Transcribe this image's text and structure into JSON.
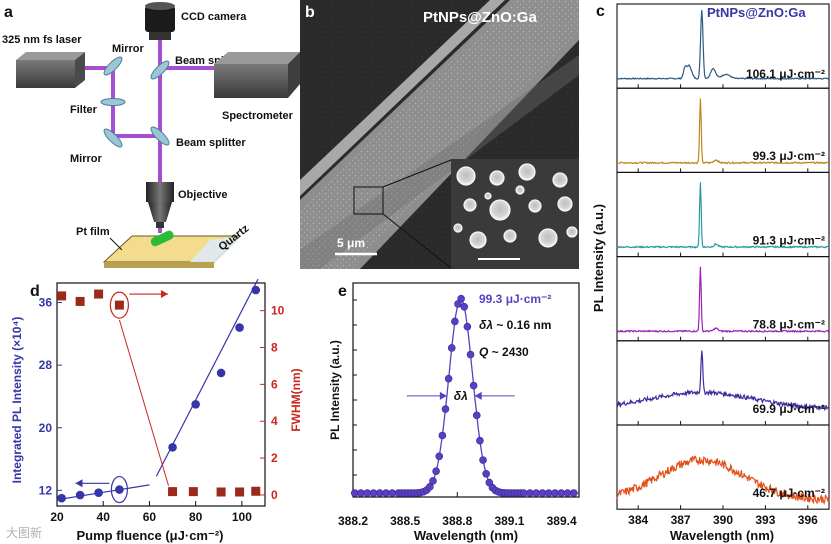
{
  "panels": {
    "a": {
      "letter": "a",
      "labels": {
        "laser": "325 nm fs laser",
        "camera": "CCD camera",
        "mirror_top": "Mirror",
        "bs_top": "Beam splitter",
        "spectrometer": "Spectrometer",
        "filter": "Filter",
        "bs_bottom": "Beam splitter",
        "mirror_bottom": "Mirror",
        "objective": "Objective",
        "pt_film": "Pt film",
        "quartz": "Quartz"
      },
      "colors": {
        "beam": "#a64fd0",
        "sample": "#f3dc8b",
        "rod": "#2bbb34"
      }
    },
    "b": {
      "letter": "b",
      "title": "PtNPs@ZnO:Ga",
      "scalebar": "5 μm"
    },
    "c": {
      "letter": "c",
      "title": "PtNPs@ZnO:Ga",
      "ylabel": "PL Intensity (a.u.)",
      "xlabel": "Wavelength (nm)",
      "xticks": [
        "384",
        "387",
        "390",
        "393",
        "396"
      ],
      "spectra": [
        {
          "label": "106.1 μJ·cm⁻²",
          "color": "#2d5a80",
          "type": "multi"
        },
        {
          "label": "99.3 μJ·cm⁻²",
          "color": "#b98a1b",
          "type": "single"
        },
        {
          "label": "91.3 μJ·cm⁻²",
          "color": "#2a9a9e",
          "type": "single"
        },
        {
          "label": "78.8 μJ·cm⁻²",
          "color": "#9a22b5",
          "type": "single"
        },
        {
          "label": "69.9 μJ·cm⁻²",
          "color": "#3b2fa0",
          "type": "broadpeak"
        },
        {
          "label": "46.7 μJ·cm⁻²",
          "color": "#e2501a",
          "type": "broad"
        }
      ]
    },
    "d": {
      "letter": "d",
      "xlabel": "Pump fluence (μJ·cm⁻²)",
      "ylabel_left": "Integrated PL Intensity (×10⁴)",
      "ylabel_right": "FWHM(nm)",
      "colors": {
        "left": "#3636a8",
        "right": "#c8281e",
        "fwhm_marker": "#9b2a1a"
      }
    },
    "e": {
      "letter": "e",
      "ylabel": "PL Intensity (a.u.)",
      "xlabel": "Wavelength (nm)",
      "annot_fluence": "99.3 μJ·cm⁻²",
      "annot_dl_sym": "δλ",
      "annot_dl_val": " ~ 0.16 nm",
      "annot_q_sym": "Q",
      "annot_q_val": " ~ 2430",
      "dl_marker": "δλ",
      "color": "#5a3fc0"
    }
  },
  "watermark": "大图新",
  "chart_data": [
    {
      "type": "scatter",
      "panel": "d",
      "title": "",
      "xlabel": "Pump fluence (μJ·cm⁻²)",
      "ylabel": "Integrated PL Intensity (×10⁴)",
      "ylabel_right": "FWHM(nm)",
      "xlim": [
        20,
        110
      ],
      "ylim": [
        10,
        38.5
      ],
      "ylim_right": [
        -0.6,
        11.5
      ],
      "xticks": [
        20,
        40,
        60,
        80,
        100
      ],
      "yticks": [
        12,
        20,
        28,
        36
      ],
      "yticks_right": [
        0,
        2,
        4,
        6,
        8,
        10
      ],
      "series": [
        {
          "name": "Integrated PL Intensity",
          "axis": "left",
          "marker": "circle",
          "x": [
            22,
            30,
            38,
            47,
            70,
            80,
            91,
            99,
            106
          ],
          "y": [
            11.0,
            11.4,
            11.7,
            12.1,
            17.5,
            23.0,
            27.0,
            32.8,
            37.6
          ]
        },
        {
          "name": "FWHM",
          "axis": "right",
          "marker": "square",
          "x": [
            22,
            30,
            38,
            47,
            70,
            79,
            91,
            99,
            106
          ],
          "y": [
            10.8,
            10.5,
            10.9,
            10.3,
            0.18,
            0.18,
            0.16,
            0.16,
            0.2
          ]
        }
      ],
      "fit_lines": [
        {
          "axis": "left",
          "x": [
            20,
            60
          ],
          "y": [
            10.8,
            12.7
          ]
        },
        {
          "axis": "left",
          "x": [
            63,
            107
          ],
          "y": [
            13.8,
            39.0
          ]
        }
      ]
    },
    {
      "type": "line",
      "panel": "e",
      "xlabel": "Wavelength (nm)",
      "ylabel": "PL Intensity (a.u.)",
      "xlim": [
        388.2,
        389.5
      ],
      "xticks": [
        388.2,
        388.5,
        388.8,
        389.1,
        389.4
      ],
      "ylim": [
        0,
        1.1
      ],
      "peak_center": 388.82,
      "fwhm": 0.16,
      "Q": 2430
    }
  ]
}
